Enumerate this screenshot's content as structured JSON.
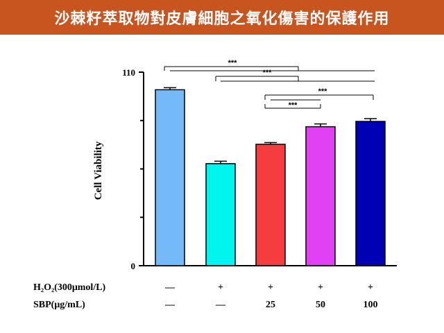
{
  "banner": {
    "title": "沙棘籽萃取物對皮膚細胞之氧化傷害的保護作用",
    "color": "#c8541f"
  },
  "chart_data": {
    "type": "bar",
    "title": "沙棘籽萃取物對皮膚細胞之氧化傷害的保護作用",
    "ylabel": "Cell Viability",
    "xlabel": "",
    "ylim": [
      0,
      110
    ],
    "yticks": [
      "0",
      "110"
    ],
    "grid": false,
    "values": [
      100,
      58,
      69,
      79,
      82
    ],
    "errors": [
      1.2,
      1.4,
      1.0,
      1.6,
      1.6
    ],
    "colors": [
      "#74b9f8",
      "#00f5ef",
      "#f53c3e",
      "#e041f2",
      "#0000b4"
    ],
    "condition_rows": [
      {
        "label": "H₂O₂(300μmol/L)",
        "values": [
          "—",
          "+",
          "+",
          "+",
          "+"
        ]
      },
      {
        "label": "SBP(μg/mL)",
        "values": [
          "—",
          "—",
          "25",
          "50",
          "100"
        ]
      }
    ],
    "significance": [
      {
        "from": 0,
        "to": 1,
        "to_right": 4,
        "label": "***"
      },
      {
        "from": 1,
        "to": 2,
        "to_right": 4,
        "label": "***"
      },
      {
        "from": 2,
        "to": 3,
        "to_right": 4,
        "label": "***"
      },
      {
        "from": 2,
        "to": 3,
        "label": "***"
      }
    ]
  }
}
